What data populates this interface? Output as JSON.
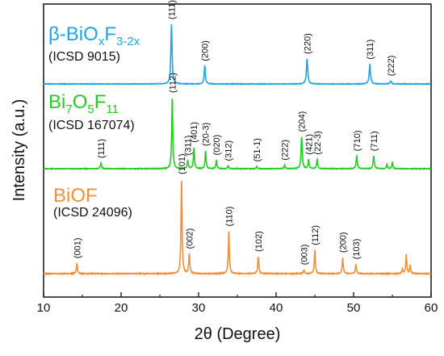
{
  "chart_data": {
    "type": "line",
    "xlabel": "2θ (Degree)",
    "ylabel": "Intensity (a.u.)",
    "xlim": [
      10,
      60
    ],
    "x_ticks": [
      "10",
      "20",
      "30",
      "40",
      "50",
      "60"
    ],
    "grid": false,
    "series": [
      {
        "name": "β-BiOxF3-2x",
        "name_main": "β-BiO",
        "name_sub1": "x",
        "name_mid": "F",
        "name_sub2": "3-2x",
        "reference": "(ICSD 9015)",
        "color": "#1aa6e8",
        "peaks": [
          {
            "x": 26.5,
            "h": 1.0,
            "w": 0.18,
            "label": "(111)"
          },
          {
            "x": 30.8,
            "h": 0.3,
            "w": 0.18,
            "label": "(200)"
          },
          {
            "x": 44.0,
            "h": 0.42,
            "w": 0.2,
            "label": "(220)"
          },
          {
            "x": 52.1,
            "h": 0.33,
            "w": 0.2,
            "label": "(311)"
          },
          {
            "x": 54.8,
            "h": 0.05,
            "w": 0.2,
            "label": "(222)"
          }
        ]
      },
      {
        "name": "Bi7O5F11",
        "name_main": "Bi",
        "name_sub1": "7",
        "name_mid": "O",
        "name_sub2": "5",
        "name_tail": "F",
        "name_sub3": "11",
        "reference": "(ICSD 167074)",
        "color": "#22cc22",
        "peaks": [
          {
            "x": 17.4,
            "h": 0.08,
            "w": 0.18,
            "label": "(111)"
          },
          {
            "x": 26.6,
            "h": 1.0,
            "w": 0.16,
            "label": "(112)"
          },
          {
            "x": 28.6,
            "h": 0.12,
            "w": 0.16,
            "label": "(311)"
          },
          {
            "x": 29.4,
            "h": 0.3,
            "w": 0.16,
            "label": "(401)"
          },
          {
            "x": 30.9,
            "h": 0.25,
            "w": 0.16,
            "label": "(20-3)"
          },
          {
            "x": 32.3,
            "h": 0.12,
            "w": 0.16,
            "label": "(020)"
          },
          {
            "x": 33.8,
            "h": 0.04,
            "w": 0.16,
            "label": "(312)"
          },
          {
            "x": 37.5,
            "h": 0.03,
            "w": 0.16,
            "label": "(51-1)"
          },
          {
            "x": 41.1,
            "h": 0.05,
            "w": 0.16,
            "label": "(222)"
          },
          {
            "x": 43.3,
            "h": 0.45,
            "w": 0.18,
            "label": "(204)"
          },
          {
            "x": 44.2,
            "h": 0.13,
            "w": 0.16,
            "label": "(421)"
          },
          {
            "x": 45.3,
            "h": 0.13,
            "w": 0.16,
            "label": "(22-3)"
          },
          {
            "x": 50.4,
            "h": 0.18,
            "w": 0.18,
            "label": "(710)"
          },
          {
            "x": 52.6,
            "h": 0.18,
            "w": 0.18,
            "label": "(711)"
          },
          {
            "x": 54.3,
            "h": 0.06,
            "w": 0.16,
            "label": ""
          },
          {
            "x": 55.0,
            "h": 0.09,
            "w": 0.16,
            "label": ""
          }
        ]
      },
      {
        "name": "BiOF",
        "reference": "(ICSD 24096)",
        "color": "#f0903a",
        "peaks": [
          {
            "x": 14.3,
            "h": 0.11,
            "w": 0.16,
            "label": "(001)"
          },
          {
            "x": 27.8,
            "h": 1.0,
            "w": 0.16,
            "label": "(101)"
          },
          {
            "x": 28.8,
            "h": 0.21,
            "w": 0.16,
            "label": "(002)"
          },
          {
            "x": 33.9,
            "h": 0.45,
            "w": 0.16,
            "label": "(110)"
          },
          {
            "x": 37.7,
            "h": 0.18,
            "w": 0.16,
            "label": "(102)"
          },
          {
            "x": 43.6,
            "h": 0.04,
            "w": 0.16,
            "label": "(003)"
          },
          {
            "x": 45.0,
            "h": 0.25,
            "w": 0.16,
            "label": "(112)"
          },
          {
            "x": 48.6,
            "h": 0.17,
            "w": 0.16,
            "label": "(200)"
          },
          {
            "x": 50.3,
            "h": 0.1,
            "w": 0.16,
            "label": "(103)"
          },
          {
            "x": 56.3,
            "h": 0.05,
            "w": 0.14,
            "label": ""
          },
          {
            "x": 56.8,
            "h": 0.2,
            "w": 0.16,
            "label": ""
          },
          {
            "x": 57.3,
            "h": 0.09,
            "w": 0.14,
            "label": ""
          }
        ]
      }
    ]
  }
}
